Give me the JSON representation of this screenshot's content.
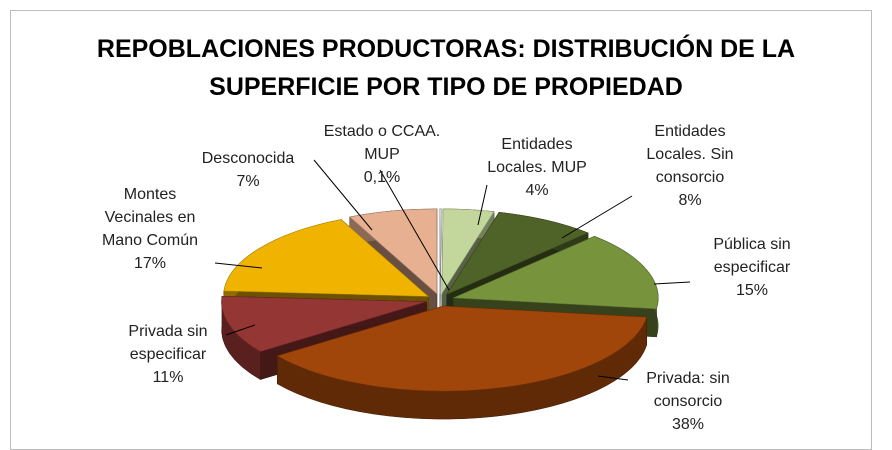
{
  "chart_data": {
    "type": "pie",
    "title": "REPOBLACIONES PRODUCTORAS: DISTRIBUCIÓN DE LA SUPERFICIE POR TIPO DE PROPIEDAD",
    "categories": [
      "Estado o CCAA. MUP",
      "Entidades Locales. MUP",
      "Entidades Locales. Sin consorcio",
      "Pública sin especificar",
      "Privada: sin consorcio",
      "Privada sin especificar",
      "Montes Vecinales en Mano Común",
      "Desconocida"
    ],
    "values": [
      0.1,
      4,
      8,
      15,
      38,
      11,
      17,
      7
    ],
    "value_labels": [
      "0,1%",
      "4%",
      "8%",
      "15%",
      "38%",
      "11%",
      "17%",
      "7%"
    ],
    "colors": [
      "#e8e8e8",
      "#c3d69b",
      "#4f6228",
      "#77933c",
      "#a0460a",
      "#943634",
      "#f0b400",
      "#e6b091"
    ]
  }
}
